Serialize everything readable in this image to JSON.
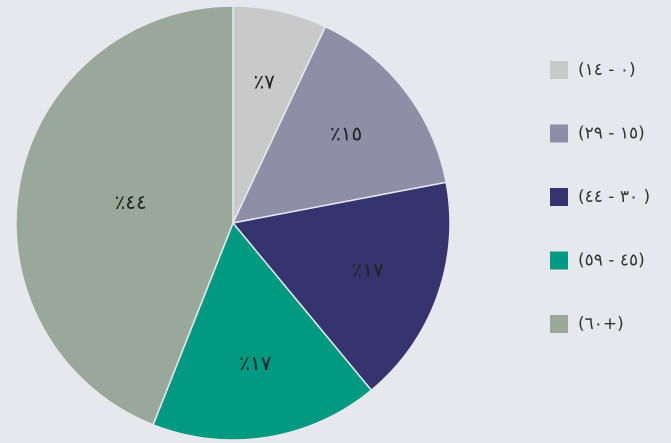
{
  "chart_data": {
    "type": "pie",
    "categories": [
      "(١٤ - ٠)",
      "(٢٩ - ١٥)",
      "(٤٤ - ٣٠ )",
      "(٥٩ - ٤٥)",
      "(٦٠+)"
    ],
    "values": [
      7,
      15,
      17,
      17,
      44
    ],
    "value_labels": [
      "٪٧",
      "٪١٥",
      "٪١٧",
      "٪١٧",
      "٪٤٤"
    ],
    "colors": [
      "#c9c9c9",
      "#8e8fa7",
      "#35346e",
      "#009a82",
      "#9aa899"
    ]
  }
}
